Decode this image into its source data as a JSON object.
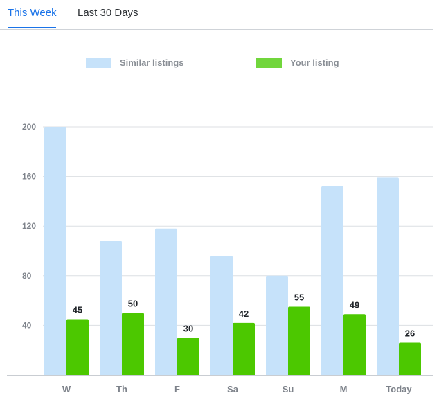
{
  "tabs": [
    {
      "label": "This Week",
      "active": true
    },
    {
      "label": "Last 30 Days",
      "active": false
    }
  ],
  "colors": {
    "accent": "#1a73e8",
    "similar": "#c6e2fa",
    "yours": "#4cc800",
    "yours_legend": "#71d63c"
  },
  "chart_data": {
    "type": "bar",
    "title": "",
    "xlabel": "",
    "ylabel": "",
    "ylim": [
      0,
      200
    ],
    "yticks": [
      40,
      80,
      120,
      160,
      200
    ],
    "grid": true,
    "legend_position": "top",
    "categories": [
      "W",
      "Th",
      "F",
      "Sa",
      "Su",
      "M",
      "Today"
    ],
    "series": [
      {
        "name": "Similar listings",
        "values": [
          200,
          108,
          118,
          96,
          80,
          152,
          159
        ],
        "show_labels": false
      },
      {
        "name": "Your listing",
        "values": [
          45,
          50,
          30,
          42,
          55,
          49,
          26
        ],
        "show_labels": true
      }
    ]
  }
}
